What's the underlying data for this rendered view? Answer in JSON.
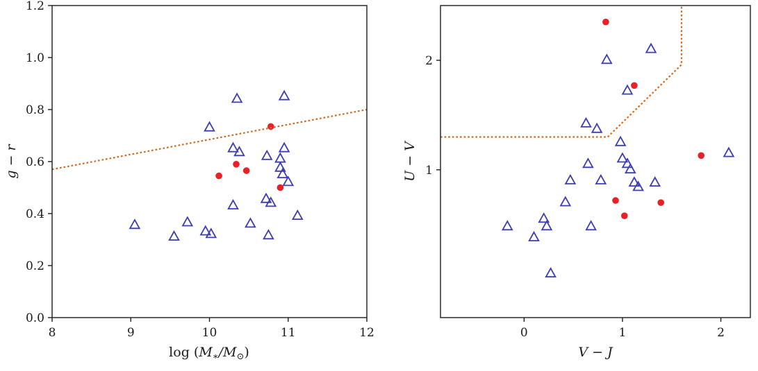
{
  "figure": {
    "background": "#ffffff",
    "frame_color": "#1b1b1b"
  },
  "colors": {
    "triangle_marker": "#3c3cb4",
    "circle_marker": "#e82128",
    "dashed_line": "#d2691e"
  },
  "chart_data": [
    {
      "type": "scatter",
      "panel": "left",
      "title": "",
      "xlabel": "log (M∗/M⊙)",
      "xlabel_parts": [
        "log (",
        "M",
        "∗",
        "/M",
        "⊙",
        ")"
      ],
      "ylabel": "g − r",
      "xlim": [
        8,
        12
      ],
      "ylim": [
        0.0,
        1.2
      ],
      "grid": false,
      "legend": "none",
      "xticks": [
        {
          "v": 8,
          "label": "8"
        },
        {
          "v": 9,
          "label": "9"
        },
        {
          "v": 10,
          "label": "10"
        },
        {
          "v": 11,
          "label": "11"
        },
        {
          "v": 12,
          "label": "12"
        }
      ],
      "yticks": [
        {
          "v": 0.0,
          "label": "0.0"
        },
        {
          "v": 0.2,
          "label": "0.2"
        },
        {
          "v": 0.4,
          "label": "0.4"
        },
        {
          "v": 0.6,
          "label": "0.6"
        },
        {
          "v": 0.8,
          "label": "0.8"
        },
        {
          "v": 1.0,
          "label": "1.0"
        },
        {
          "v": 1.2,
          "label": "1.2"
        }
      ],
      "series": [
        {
          "name": "open-triangles",
          "marker": "triangle",
          "color": "#3c3cb4",
          "points": [
            [
              10.35,
              0.84
            ],
            [
              10.95,
              0.85
            ],
            [
              10.0,
              0.73
            ],
            [
              10.3,
              0.65
            ],
            [
              10.38,
              0.635
            ],
            [
              10.73,
              0.62
            ],
            [
              10.95,
              0.65
            ],
            [
              10.9,
              0.61
            ],
            [
              10.9,
              0.575
            ],
            [
              10.93,
              0.55
            ],
            [
              11.0,
              0.52
            ],
            [
              10.3,
              0.43
            ],
            [
              10.72,
              0.455
            ],
            [
              10.78,
              0.44
            ],
            [
              11.12,
              0.39
            ],
            [
              9.05,
              0.355
            ],
            [
              9.72,
              0.365
            ],
            [
              10.52,
              0.36
            ],
            [
              9.55,
              0.31
            ],
            [
              9.95,
              0.33
            ],
            [
              10.02,
              0.32
            ],
            [
              10.75,
              0.315
            ]
          ]
        },
        {
          "name": "filled-circles",
          "marker": "circle",
          "color": "#e82128",
          "points": [
            [
              10.78,
              0.735
            ],
            [
              10.12,
              0.545
            ],
            [
              10.34,
              0.59
            ],
            [
              10.47,
              0.565
            ],
            [
              10.9,
              0.5
            ]
          ]
        },
        {
          "name": "dashed-boundary",
          "marker": "none",
          "line": "dashed",
          "color": "#d2691e",
          "points": [
            [
              8,
              0.57
            ],
            [
              12,
              0.8
            ]
          ]
        }
      ]
    },
    {
      "type": "scatter",
      "panel": "right",
      "title": "",
      "xlabel": "V − J",
      "ylabel": "U − V",
      "xlim": [
        -0.85,
        2.3
      ],
      "ylim": [
        -0.35,
        2.5
      ],
      "grid": false,
      "legend": "none",
      "xticks": [
        {
          "v": 0,
          "label": "0"
        },
        {
          "v": 1,
          "label": "1"
        },
        {
          "v": 2,
          "label": "2"
        }
      ],
      "yticks": [
        {
          "v": 1,
          "label": "1"
        },
        {
          "v": 2,
          "label": "2"
        }
      ],
      "series": [
        {
          "name": "open-triangles",
          "marker": "triangle",
          "color": "#3c3cb4",
          "points": [
            [
              0.84,
              2.0
            ],
            [
              1.29,
              2.1
            ],
            [
              1.05,
              1.72
            ],
            [
              0.63,
              1.42
            ],
            [
              0.74,
              1.37
            ],
            [
              0.98,
              1.25
            ],
            [
              1.0,
              1.1
            ],
            [
              1.05,
              1.05
            ],
            [
              1.08,
              1.0
            ],
            [
              0.65,
              1.05
            ],
            [
              0.47,
              0.9
            ],
            [
              0.78,
              0.9
            ],
            [
              1.12,
              0.88
            ],
            [
              1.16,
              0.84
            ],
            [
              1.33,
              0.88
            ],
            [
              0.42,
              0.7
            ],
            [
              0.2,
              0.55
            ],
            [
              0.23,
              0.48
            ],
            [
              0.68,
              0.48
            ],
            [
              -0.17,
              0.48
            ],
            [
              0.1,
              0.38
            ],
            [
              0.27,
              0.05
            ],
            [
              2.08,
              1.15
            ]
          ]
        },
        {
          "name": "filled-circles",
          "marker": "circle",
          "color": "#e82128",
          "points": [
            [
              0.83,
              2.35
            ],
            [
              1.12,
              1.77
            ],
            [
              1.8,
              1.13
            ],
            [
              0.93,
              0.72
            ],
            [
              1.02,
              0.58
            ],
            [
              1.39,
              0.7
            ]
          ]
        },
        {
          "name": "uvj-selection-line",
          "marker": "none",
          "line": "dashed",
          "color": "#d2691e",
          "points": [
            [
              -0.85,
              1.3
            ],
            [
              0.85,
              1.3
            ],
            [
              1.6,
              1.96
            ],
            [
              1.6,
              2.5
            ]
          ]
        }
      ]
    }
  ]
}
